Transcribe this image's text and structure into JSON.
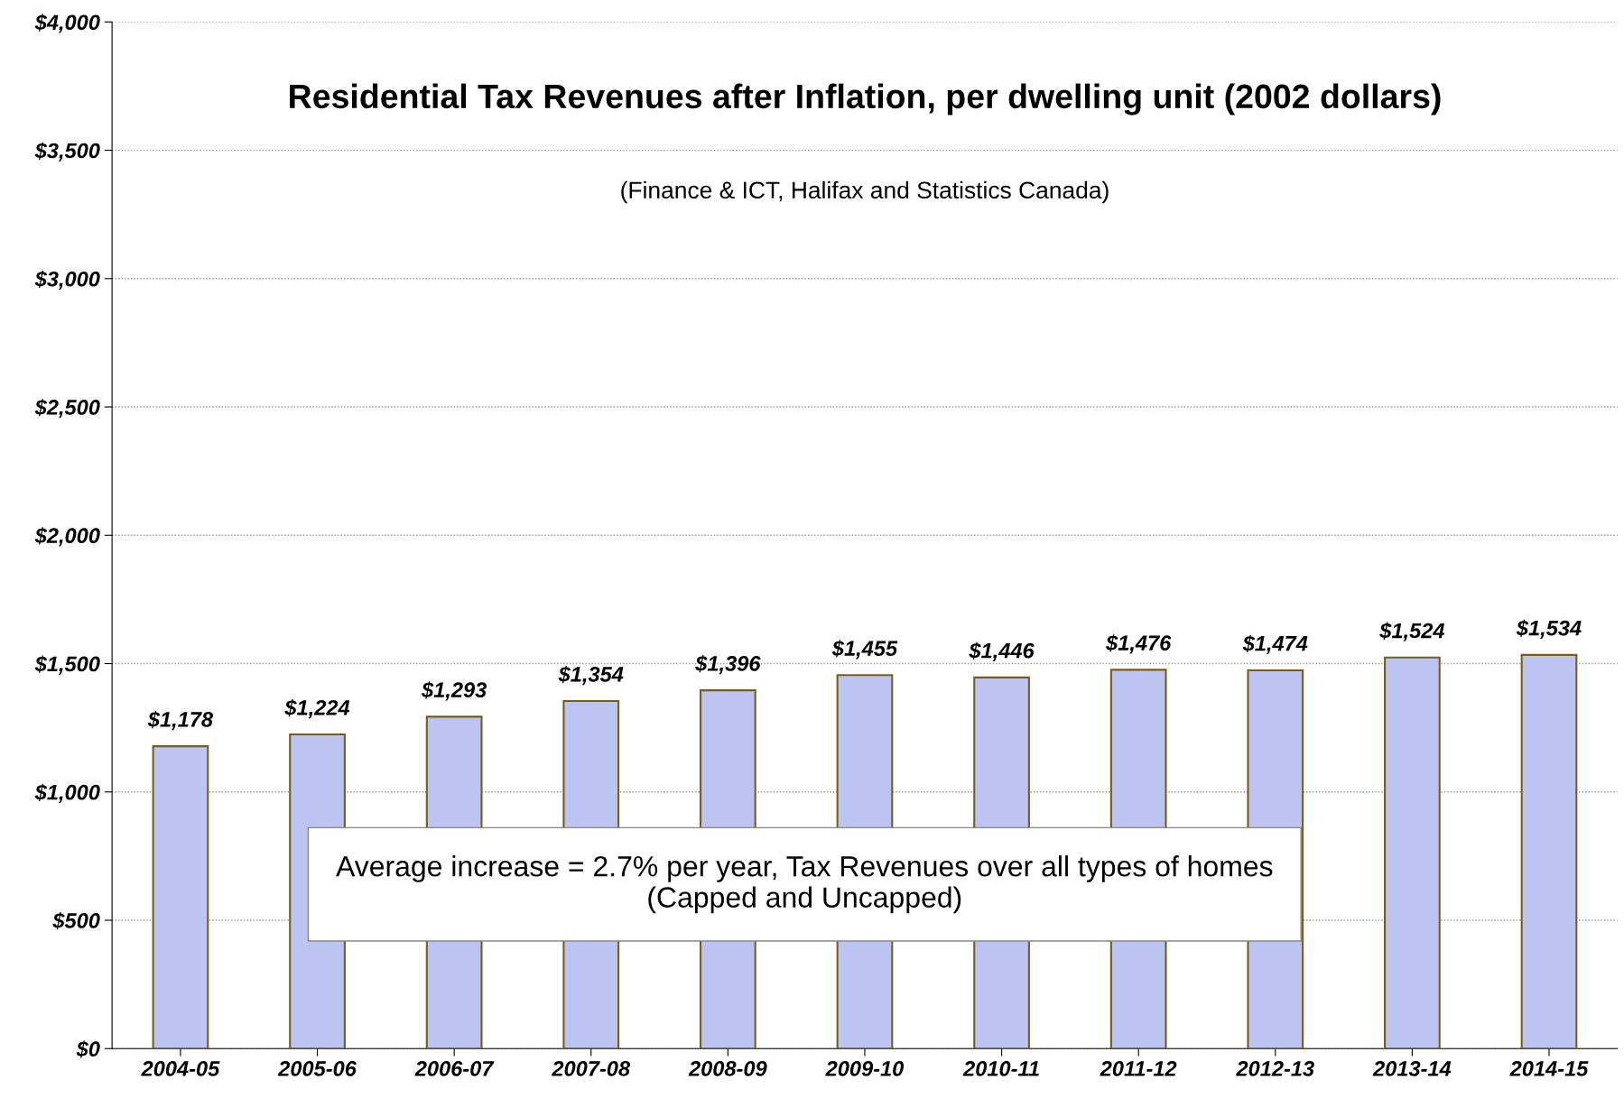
{
  "chart_data": {
    "type": "bar",
    "title": "Residential Tax Revenues after Inflation, per dwelling unit (2002 dollars)",
    "subtitle": "(Finance & ICT, Halifax and Statistics Canada)",
    "categories": [
      "2004-05",
      "2005-06",
      "2006-07",
      "2007-08",
      "2008-09",
      "2009-10",
      "2010-11",
      "2011-12",
      "2012-13",
      "2013-14",
      "2014-15"
    ],
    "values": [
      1178,
      1224,
      1293,
      1354,
      1396,
      1455,
      1446,
      1476,
      1474,
      1524,
      1534
    ],
    "value_labels": [
      "$1,178",
      "$1,224",
      "$1,293",
      "$1,354",
      "$1,396",
      "$1,455",
      "$1,446",
      "$1,476",
      "$1,474",
      "$1,524",
      "$1,534"
    ],
    "color": "#bcc4f2",
    "ylim": [
      0,
      4000
    ],
    "yticks": [
      {
        "value": 0,
        "label": "$0"
      },
      {
        "value": 500,
        "label": "$500"
      },
      {
        "value": 1000,
        "label": "$1,000"
      },
      {
        "value": 1500,
        "label": "$1,500"
      },
      {
        "value": 2000,
        "label": "$2,000"
      },
      {
        "value": 2500,
        "label": "$2,500"
      },
      {
        "value": 3000,
        "label": "$3,000"
      },
      {
        "value": 3500,
        "label": "$3,500"
      },
      {
        "value": 4000,
        "label": "$4,000"
      }
    ],
    "grid": "y",
    "annotations": [
      "Average increase = 2.7% per year, Tax Revenues over all types of homes (Capped and Uncapped)"
    ]
  }
}
